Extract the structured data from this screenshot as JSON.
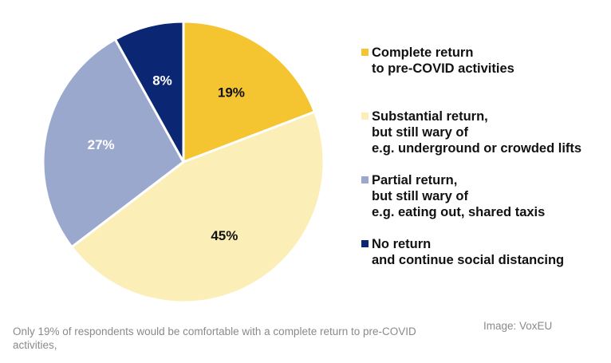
{
  "chart_data": {
    "type": "pie",
    "title": "",
    "slices": [
      {
        "label_lines": [
          "Complete return",
          "to pre-COVID activities"
        ],
        "value": 19,
        "display": "19%",
        "color": "#f5c431",
        "text_color": "#111111"
      },
      {
        "label_lines": [
          "Substantial return,",
          "but still wary of",
          "e.g. underground or crowded lifts"
        ],
        "value": 45,
        "display": "45%",
        "color": "#fbeeb6",
        "text_color": "#111111"
      },
      {
        "label_lines": [
          "Partial return,",
          "but still wary of",
          "e.g. eating out, shared taxis"
        ],
        "value": 27,
        "display": "27%",
        "color": "#9aa8cd",
        "text_color": "#ffffff"
      },
      {
        "label_lines": [
          "No return",
          "and continue social distancing"
        ],
        "value": 8,
        "display": "8%",
        "color": "#0b2673",
        "text_color": "#ffffff"
      }
    ],
    "start": "12 o'clock",
    "direction": "clockwise",
    "legend_position": "right"
  },
  "caption": "Only 19% of respondents would be comfortable with a complete return to pre-COVID activities,",
  "credit": "Image: VoxEU"
}
